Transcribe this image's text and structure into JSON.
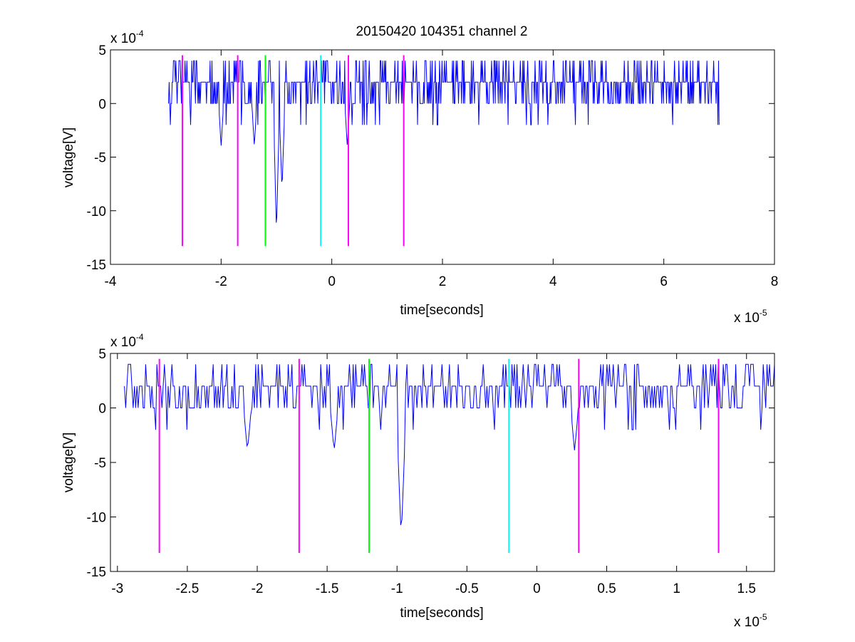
{
  "figure_title": "20150420 104351 channel 2",
  "chart_data": [
    {
      "type": "line",
      "title": "20150420 104351 channel 2",
      "xlabel": "time[seconds]",
      "ylabel": "voltage[V]",
      "x_multiplier_label": "x 10",
      "x_multiplier_exp": "-5",
      "y_multiplier_label": "x 10",
      "y_multiplier_exp": "-4",
      "xlim": [
        -4,
        8
      ],
      "ylim": [
        -15,
        5
      ],
      "xticks": [
        -4,
        -2,
        0,
        2,
        4,
        6,
        8
      ],
      "xtick_labels": [
        "-4",
        "-2",
        "0",
        "2",
        "4",
        "6",
        "8"
      ],
      "yticks": [
        5,
        0,
        -5,
        -10,
        -15
      ],
      "ytick_labels": [
        "5",
        "0",
        "-5",
        "-10",
        "-15"
      ],
      "grid": false,
      "series": [
        {
          "color": "#0000ff",
          "x_range": [
            -2.95,
            7.0
          ],
          "baseline_levels": [
            0,
            2,
            4,
            -2
          ],
          "dips": [
            [
              -2.0,
              -4
            ],
            [
              -1.4,
              -4
            ],
            [
              -1.0,
              -12
            ],
            [
              -0.9,
              -8
            ],
            [
              0.28,
              -4
            ]
          ]
        }
      ],
      "markers": [
        {
          "x": -2.7,
          "color": "#ff00ff",
          "y_range": [
            -13.3,
            4.5
          ]
        },
        {
          "x": -1.7,
          "color": "#ff00ff",
          "y_range": [
            -13.3,
            4.5
          ]
        },
        {
          "x": -1.2,
          "color": "#00ff00",
          "y_range": [
            -13.3,
            4.5
          ]
        },
        {
          "x": -0.2,
          "color": "#00ffff",
          "y_range": [
            -13.3,
            4.5
          ]
        },
        {
          "x": 0.3,
          "color": "#ff00ff",
          "y_range": [
            -13.3,
            4.5
          ]
        },
        {
          "x": 1.3,
          "color": "#ff00ff",
          "y_range": [
            -13.3,
            4.5
          ]
        }
      ]
    },
    {
      "type": "line",
      "title": "",
      "xlabel": "time[seconds]",
      "ylabel": "voltage[V]",
      "x_multiplier_label": "x 10",
      "x_multiplier_exp": "-5",
      "y_multiplier_label": "x 10",
      "y_multiplier_exp": "-4",
      "xlim": [
        -3.05,
        1.7
      ],
      "ylim": [
        -15,
        5
      ],
      "xticks": [
        -3,
        -2.5,
        -2,
        -1.5,
        -1,
        -0.5,
        0,
        0.5,
        1,
        1.5
      ],
      "xtick_labels": [
        "-3",
        "-2.5",
        "-2",
        "-1.5",
        "-1",
        "-0.5",
        "0",
        "0.5",
        "1",
        "1.5"
      ],
      "yticks": [
        5,
        0,
        -5,
        -10,
        -15
      ],
      "ytick_labels": [
        "5",
        "0",
        "-5",
        "-10",
        "-15"
      ],
      "grid": false,
      "series": [
        {
          "color": "#0000ff",
          "x_range": [
            -2.95,
            1.7
          ],
          "baseline_levels": [
            0,
            2,
            4,
            -2
          ],
          "dips": [
            [
              -2.07,
              -4
            ],
            [
              -1.45,
              -4
            ],
            [
              -0.97,
              -12
            ],
            [
              0.27,
              -4
            ]
          ]
        }
      ],
      "markers": [
        {
          "x": -2.7,
          "color": "#ff00ff",
          "y_range": [
            -13.3,
            4.5
          ]
        },
        {
          "x": -1.7,
          "color": "#ff00ff",
          "y_range": [
            -13.3,
            4.5
          ]
        },
        {
          "x": -1.2,
          "color": "#00ff00",
          "y_range": [
            -13.3,
            4.5
          ]
        },
        {
          "x": -0.2,
          "color": "#00ffff",
          "y_range": [
            -13.3,
            4.5
          ]
        },
        {
          "x": 0.3,
          "color": "#ff00ff",
          "y_range": [
            -13.3,
            4.5
          ]
        },
        {
          "x": 1.3,
          "color": "#ff00ff",
          "y_range": [
            -13.3,
            4.5
          ]
        }
      ]
    }
  ]
}
